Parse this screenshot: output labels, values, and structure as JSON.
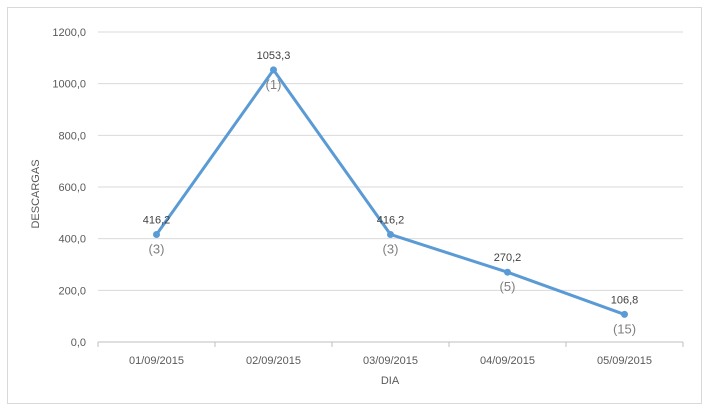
{
  "chart_data": {
    "type": "line",
    "title": "",
    "xlabel": "DIA",
    "ylabel": "DESCARGAS",
    "ylim": [
      0,
      1200
    ],
    "y_ticks": [
      "0,0",
      "200,0",
      "400,0",
      "600,0",
      "800,0",
      "1000,0",
      "1200,0"
    ],
    "grid": "horizontal",
    "categories": [
      "01/09/2015",
      "02/09/2015",
      "03/09/2015",
      "04/09/2015",
      "05/09/2015"
    ],
    "series": [
      {
        "color": "#5b9bd5",
        "values": [
          416.2,
          1053.3,
          416.2,
          270.2,
          106.8
        ],
        "value_labels": [
          "416,2",
          "1053,3",
          "416,2",
          "270,2",
          "106,8"
        ],
        "rank_labels": [
          "(3)",
          "(1)",
          "(3)",
          "(5)",
          "(15)"
        ]
      }
    ]
  }
}
